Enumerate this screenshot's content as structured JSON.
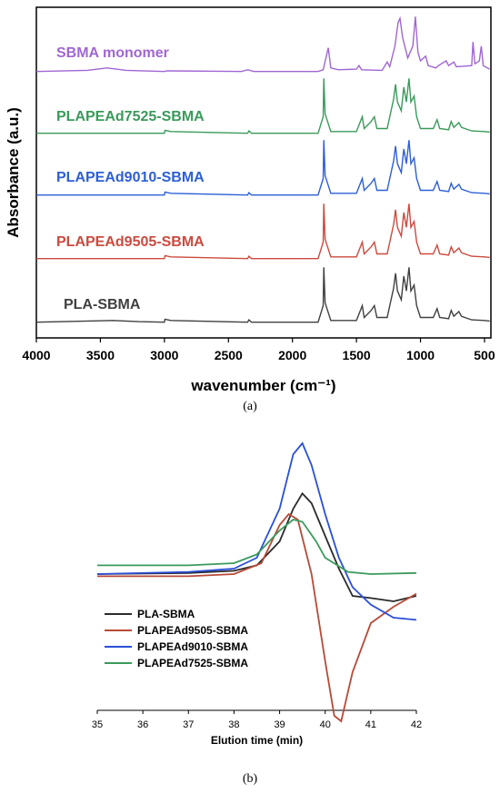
{
  "figure": {
    "caption_a": "(a)",
    "caption_b": "(b)"
  },
  "chart_data": [
    {
      "type": "line",
      "xlabel": "wavenumber (cm⁻¹)",
      "ylabel": "Absorbance (a.u.)",
      "xlim": [
        4000,
        450
      ],
      "x_reversed": true,
      "xticks": [
        4000,
        3500,
        3000,
        2500,
        2000,
        1500,
        1000,
        500
      ],
      "y_ticks_shown": false,
      "note_stacked_offset": true,
      "series": [
        {
          "name": "SBMA monomer",
          "color": "#a066d3",
          "points": [
            [
              4000,
              0.02
            ],
            [
              3600,
              0.04
            ],
            [
              3450,
              0.08
            ],
            [
              3300,
              0.04
            ],
            [
              3000,
              0.02
            ],
            [
              2980,
              0.03
            ],
            [
              2400,
              0.02
            ],
            [
              2350,
              0.05
            ],
            [
              2300,
              0.02
            ],
            [
              1800,
              0.02
            ],
            [
              1760,
              0.05
            ],
            [
              1720,
              0.42
            ],
            [
              1700,
              0.08
            ],
            [
              1640,
              0.05
            ],
            [
              1500,
              0.06
            ],
            [
              1480,
              0.12
            ],
            [
              1460,
              0.05
            ],
            [
              1300,
              0.04
            ],
            [
              1260,
              0.18
            ],
            [
              1240,
              0.1
            ],
            [
              1200,
              0.45
            ],
            [
              1175,
              0.85
            ],
            [
              1160,
              0.92
            ],
            [
              1140,
              0.6
            ],
            [
              1100,
              0.25
            ],
            [
              1060,
              0.45
            ],
            [
              1040,
              0.95
            ],
            [
              1020,
              0.35
            ],
            [
              1000,
              0.2
            ],
            [
              960,
              0.28
            ],
            [
              940,
              0.12
            ],
            [
              880,
              0.08
            ],
            [
              860,
              0.12
            ],
            [
              800,
              0.2
            ],
            [
              780,
              0.12
            ],
            [
              740,
              0.18
            ],
            [
              720,
              0.1
            ],
            [
              600,
              0.12
            ],
            [
              590,
              0.52
            ],
            [
              575,
              0.15
            ],
            [
              540,
              0.2
            ],
            [
              525,
              0.45
            ],
            [
              510,
              0.12
            ],
            [
              460,
              0.06
            ]
          ]
        },
        {
          "name": "PLAPEAd7525-SBMA",
          "color": "#3a9a5b",
          "points": [
            [
              4000,
              0.02
            ],
            [
              3000,
              0.02
            ],
            [
              2995,
              0.07
            ],
            [
              2950,
              0.05
            ],
            [
              2350,
              0.02
            ],
            [
              2340,
              0.06
            ],
            [
              2320,
              0.02
            ],
            [
              1800,
              0.02
            ],
            [
              1760,
              0.3
            ],
            [
              1755,
              0.95
            ],
            [
              1745,
              0.35
            ],
            [
              1700,
              0.05
            ],
            [
              1500,
              0.05
            ],
            [
              1455,
              0.3
            ],
            [
              1440,
              0.1
            ],
            [
              1385,
              0.22
            ],
            [
              1360,
              0.3
            ],
            [
              1340,
              0.1
            ],
            [
              1260,
              0.1
            ],
            [
              1210,
              0.6
            ],
            [
              1195,
              0.85
            ],
            [
              1180,
              0.55
            ],
            [
              1150,
              0.4
            ],
            [
              1130,
              0.8
            ],
            [
              1110,
              0.55
            ],
            [
              1090,
              0.95
            ],
            [
              1075,
              0.55
            ],
            [
              1050,
              0.65
            ],
            [
              1030,
              0.3
            ],
            [
              1000,
              0.1
            ],
            [
              900,
              0.1
            ],
            [
              870,
              0.25
            ],
            [
              850,
              0.1
            ],
            [
              780,
              0.08
            ],
            [
              760,
              0.22
            ],
            [
              740,
              0.12
            ],
            [
              700,
              0.2
            ],
            [
              680,
              0.12
            ],
            [
              600,
              0.06
            ],
            [
              500,
              0.05
            ],
            [
              460,
              0.04
            ]
          ]
        },
        {
          "name": "PLAPEAd9010-SBMA",
          "color": "#2c5fd6",
          "points": [
            [
              4000,
              0.02
            ],
            [
              3000,
              0.02
            ],
            [
              2995,
              0.07
            ],
            [
              2950,
              0.05
            ],
            [
              2350,
              0.02
            ],
            [
              2340,
              0.06
            ],
            [
              2320,
              0.02
            ],
            [
              1800,
              0.02
            ],
            [
              1760,
              0.3
            ],
            [
              1755,
              0.95
            ],
            [
              1745,
              0.35
            ],
            [
              1700,
              0.05
            ],
            [
              1500,
              0.05
            ],
            [
              1455,
              0.3
            ],
            [
              1440,
              0.1
            ],
            [
              1385,
              0.22
            ],
            [
              1360,
              0.3
            ],
            [
              1340,
              0.1
            ],
            [
              1260,
              0.1
            ],
            [
              1210,
              0.6
            ],
            [
              1195,
              0.85
            ],
            [
              1180,
              0.55
            ],
            [
              1150,
              0.4
            ],
            [
              1130,
              0.8
            ],
            [
              1110,
              0.55
            ],
            [
              1090,
              0.95
            ],
            [
              1075,
              0.55
            ],
            [
              1050,
              0.65
            ],
            [
              1030,
              0.3
            ],
            [
              1000,
              0.1
            ],
            [
              900,
              0.1
            ],
            [
              870,
              0.25
            ],
            [
              850,
              0.1
            ],
            [
              780,
              0.08
            ],
            [
              760,
              0.22
            ],
            [
              740,
              0.12
            ],
            [
              700,
              0.2
            ],
            [
              680,
              0.12
            ],
            [
              600,
              0.06
            ],
            [
              500,
              0.05
            ],
            [
              460,
              0.04
            ]
          ]
        },
        {
          "name": "PLAPEAd9505-SBMA",
          "color": "#cc4a3e",
          "points": [
            [
              4000,
              0.02
            ],
            [
              3000,
              0.02
            ],
            [
              2995,
              0.07
            ],
            [
              2950,
              0.05
            ],
            [
              2350,
              0.02
            ],
            [
              2340,
              0.06
            ],
            [
              2320,
              0.02
            ],
            [
              1800,
              0.02
            ],
            [
              1760,
              0.3
            ],
            [
              1755,
              0.95
            ],
            [
              1745,
              0.35
            ],
            [
              1700,
              0.05
            ],
            [
              1500,
              0.05
            ],
            [
              1455,
              0.3
            ],
            [
              1440,
              0.1
            ],
            [
              1385,
              0.22
            ],
            [
              1360,
              0.3
            ],
            [
              1340,
              0.1
            ],
            [
              1260,
              0.1
            ],
            [
              1210,
              0.6
            ],
            [
              1195,
              0.85
            ],
            [
              1180,
              0.55
            ],
            [
              1150,
              0.4
            ],
            [
              1130,
              0.8
            ],
            [
              1110,
              0.55
            ],
            [
              1090,
              0.95
            ],
            [
              1075,
              0.55
            ],
            [
              1050,
              0.65
            ],
            [
              1030,
              0.3
            ],
            [
              1000,
              0.1
            ],
            [
              900,
              0.1
            ],
            [
              870,
              0.25
            ],
            [
              850,
              0.1
            ],
            [
              780,
              0.08
            ],
            [
              760,
              0.22
            ],
            [
              740,
              0.12
            ],
            [
              700,
              0.2
            ],
            [
              680,
              0.12
            ],
            [
              600,
              0.06
            ],
            [
              500,
              0.05
            ],
            [
              460,
              0.04
            ]
          ]
        },
        {
          "name": "PLA-SBMA",
          "color": "#404040",
          "points": [
            [
              4000,
              0.02
            ],
            [
              3600,
              0.04
            ],
            [
              3400,
              0.05
            ],
            [
              3200,
              0.03
            ],
            [
              3000,
              0.02
            ],
            [
              2995,
              0.07
            ],
            [
              2950,
              0.05
            ],
            [
              2350,
              0.02
            ],
            [
              2340,
              0.06
            ],
            [
              2320,
              0.02
            ],
            [
              1800,
              0.02
            ],
            [
              1760,
              0.3
            ],
            [
              1755,
              0.95
            ],
            [
              1745,
              0.35
            ],
            [
              1700,
              0.05
            ],
            [
              1500,
              0.05
            ],
            [
              1455,
              0.3
            ],
            [
              1440,
              0.1
            ],
            [
              1385,
              0.22
            ],
            [
              1360,
              0.3
            ],
            [
              1340,
              0.1
            ],
            [
              1260,
              0.1
            ],
            [
              1210,
              0.6
            ],
            [
              1195,
              0.85
            ],
            [
              1180,
              0.55
            ],
            [
              1150,
              0.4
            ],
            [
              1130,
              0.8
            ],
            [
              1110,
              0.55
            ],
            [
              1090,
              0.95
            ],
            [
              1075,
              0.55
            ],
            [
              1050,
              0.65
            ],
            [
              1030,
              0.3
            ],
            [
              1000,
              0.1
            ],
            [
              900,
              0.1
            ],
            [
              870,
              0.25
            ],
            [
              850,
              0.1
            ],
            [
              780,
              0.08
            ],
            [
              760,
              0.22
            ],
            [
              740,
              0.12
            ],
            [
              700,
              0.2
            ],
            [
              680,
              0.12
            ],
            [
              600,
              0.06
            ],
            [
              500,
              0.05
            ],
            [
              460,
              0.04
            ]
          ]
        }
      ]
    },
    {
      "type": "line",
      "xlabel": "Elution time (min)",
      "ylabel": "",
      "xlim": [
        35,
        42
      ],
      "xticks": [
        35,
        36,
        37,
        38,
        39,
        40,
        41,
        42
      ],
      "y_ticks_shown": false,
      "legend_position": "lower-left",
      "series": [
        {
          "name": "PLA-SBMA",
          "color": "#2b2b2b",
          "points": [
            [
              35,
              0
            ],
            [
              37,
              0.01
            ],
            [
              38,
              0.03
            ],
            [
              38.5,
              0.08
            ],
            [
              39,
              0.3
            ],
            [
              39.3,
              0.6
            ],
            [
              39.5,
              0.74
            ],
            [
              39.7,
              0.65
            ],
            [
              40,
              0.35
            ],
            [
              40.3,
              0.05
            ],
            [
              40.6,
              -0.2
            ],
            [
              41,
              -0.22
            ],
            [
              41.5,
              -0.25
            ],
            [
              42,
              -0.2
            ]
          ]
        },
        {
          "name": "PLAPEAd9505-SBMA",
          "color": "#b84a38",
          "points": [
            [
              35,
              -0.02
            ],
            [
              37,
              -0.02
            ],
            [
              38,
              0
            ],
            [
              38.6,
              0.1
            ],
            [
              39,
              0.45
            ],
            [
              39.2,
              0.55
            ],
            [
              39.4,
              0.5
            ],
            [
              39.7,
              0
            ],
            [
              40,
              -0.8
            ],
            [
              40.2,
              -1.3
            ],
            [
              40.35,
              -1.35
            ],
            [
              40.6,
              -0.9
            ],
            [
              41,
              -0.45
            ],
            [
              41.5,
              -0.3
            ],
            [
              42,
              -0.18
            ]
          ]
        },
        {
          "name": "PLAPEAd9010-SBMA",
          "color": "#2a4fd8",
          "points": [
            [
              35,
              0
            ],
            [
              37,
              0.02
            ],
            [
              38,
              0.05
            ],
            [
              38.5,
              0.15
            ],
            [
              39,
              0.6
            ],
            [
              39.3,
              1.1
            ],
            [
              39.5,
              1.2
            ],
            [
              39.7,
              1.0
            ],
            [
              40,
              0.55
            ],
            [
              40.3,
              0.15
            ],
            [
              40.6,
              -0.12
            ],
            [
              41,
              -0.28
            ],
            [
              41.5,
              -0.4
            ],
            [
              42,
              -0.42
            ]
          ]
        },
        {
          "name": "PLAPEAd7525-SBMA",
          "color": "#3a9a5b",
          "points": [
            [
              35,
              0.08
            ],
            [
              37,
              0.08
            ],
            [
              38,
              0.1
            ],
            [
              38.5,
              0.18
            ],
            [
              39,
              0.4
            ],
            [
              39.3,
              0.5
            ],
            [
              39.5,
              0.48
            ],
            [
              39.8,
              0.3
            ],
            [
              40,
              0.15
            ],
            [
              40.5,
              0.02
            ],
            [
              41,
              0
            ],
            [
              42,
              0.01
            ]
          ]
        }
      ]
    }
  ]
}
